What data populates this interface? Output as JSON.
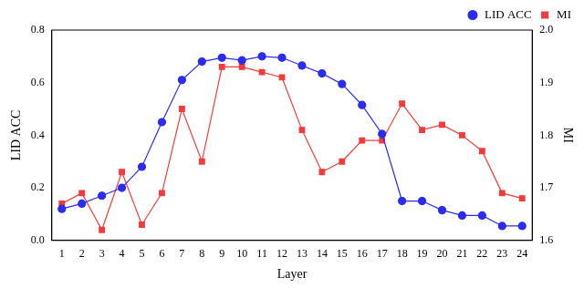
{
  "chart_data": {
    "type": "line",
    "x_label": "Layer",
    "y_label": "LID ACC",
    "y2_label": "MI",
    "categories": [
      "1",
      "2",
      "3",
      "4",
      "5",
      "6",
      "7",
      "8",
      "9",
      "10",
      "11",
      "12",
      "13",
      "14",
      "15",
      "16",
      "17",
      "18",
      "19",
      "20",
      "21",
      "22",
      "23",
      "24"
    ],
    "series": [
      {
        "name": "LID ACC",
        "color": "#2c2cf0",
        "marker": "circle",
        "line_style": "solid",
        "axis": "y",
        "values": [
          0.12,
          0.14,
          0.17,
          0.2,
          0.28,
          0.45,
          0.61,
          0.68,
          0.695,
          0.685,
          0.7,
          0.695,
          0.665,
          0.635,
          0.595,
          0.515,
          0.405,
          0.15,
          0.15,
          0.115,
          0.095,
          0.095,
          0.055,
          0.055
        ]
      },
      {
        "name": "MI",
        "color": "#f03c3c",
        "marker": "square",
        "line_style": "solid",
        "axis": "y2",
        "values": [
          1.67,
          1.69,
          1.62,
          1.73,
          1.63,
          1.69,
          1.85,
          1.75,
          1.93,
          1.93,
          1.92,
          1.91,
          1.81,
          1.73,
          1.75,
          1.79,
          1.79,
          1.86,
          1.81,
          1.82,
          1.8,
          1.77,
          1.69,
          1.68
        ]
      }
    ],
    "ylim": [
      0,
      0.8
    ],
    "yticks": [
      {
        "value": 0,
        "label": "0.0"
      },
      0.2,
      0.4,
      0.6,
      0.8
    ],
    "y2lim": [
      1.6,
      2.0
    ],
    "y2ticks": [
      1.6,
      1.7,
      1.8,
      1.9,
      {
        "value": 2.0,
        "label": "2.0"
      }
    ],
    "grid": false,
    "legend": "top-right"
  }
}
